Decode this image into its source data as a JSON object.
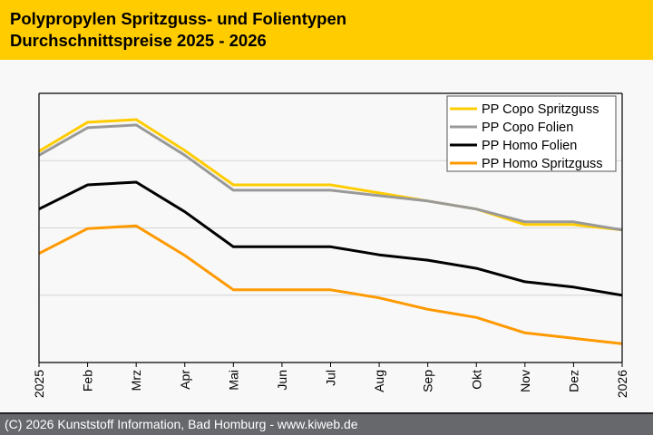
{
  "header": {
    "title_line1": "Polypropylen Spritzguss- und Folientypen",
    "title_line2": "Durchschnittspreise 2025 - 2026",
    "background_color": "#ffcc00"
  },
  "footer": {
    "text": "(C) 2026 Kunststoff Information, Bad Homburg - www.kiweb.de"
  },
  "chart_data": {
    "type": "line",
    "title": "Polypropylen Spritzguss- und Folientypen Durchschnittspreise 2025 - 2026",
    "xlabel": "",
    "ylabel": "",
    "x": [
      "2025",
      "Feb",
      "Mrz",
      "Apr",
      "Mai",
      "Jun",
      "Jul",
      "Aug",
      "Sep",
      "Okt",
      "Nov",
      "Dez",
      "2026"
    ],
    "ylim": [
      0,
      4
    ],
    "y_gridlines": [
      1,
      2,
      3
    ],
    "y_tick_labels_shown": false,
    "grid": true,
    "legend_position": "top-right",
    "series": [
      {
        "name": "PP Copo Spritzguss",
        "color": "#ffcc00",
        "values": [
          3.14,
          3.57,
          3.61,
          3.15,
          2.64,
          2.64,
          2.64,
          2.52,
          2.4,
          2.28,
          2.05,
          2.05,
          1.97
        ]
      },
      {
        "name": "PP Copo Folien",
        "color": "#999999",
        "values": [
          3.08,
          3.49,
          3.53,
          3.08,
          2.56,
          2.56,
          2.56,
          2.48,
          2.4,
          2.28,
          2.09,
          2.09,
          1.97
        ]
      },
      {
        "name": "PP Homo Folien",
        "color": "#000000",
        "values": [
          2.28,
          2.64,
          2.68,
          2.24,
          1.72,
          1.72,
          1.72,
          1.6,
          1.52,
          1.4,
          1.2,
          1.12,
          1.0
        ]
      },
      {
        "name": "PP Homo Spritzguss",
        "color": "#ff9900",
        "values": [
          1.62,
          1.99,
          2.03,
          1.59,
          1.08,
          1.08,
          1.08,
          0.96,
          0.79,
          0.67,
          0.44,
          0.36,
          0.28
        ]
      }
    ]
  }
}
